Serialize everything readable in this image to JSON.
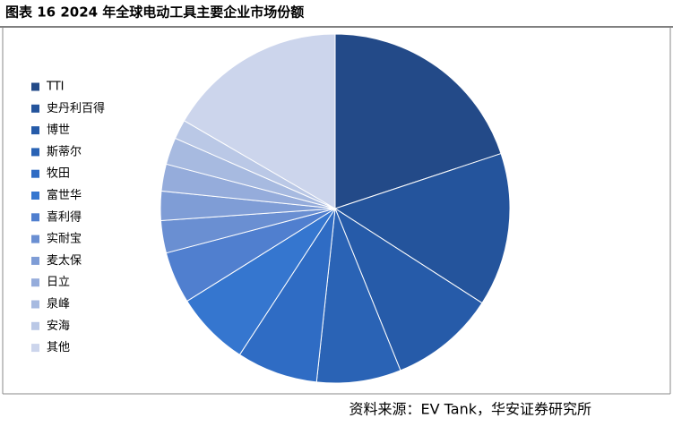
{
  "chart_data": {
    "type": "pie",
    "title": "图表 16  2024 年全球电动工具主要企业市场份额",
    "source": "资料来源：EV Tank，华安证券研究所",
    "categories": [
      "TTI",
      "史丹利百得",
      "博世",
      "斯蒂尔",
      "牧田",
      "富世华",
      "喜利得",
      "实耐宝",
      "麦太保",
      "日立",
      "泉峰",
      "安海",
      "其他"
    ],
    "values": [
      19.9,
      14.2,
      9.8,
      7.8,
      7.5,
      6.9,
      4.8,
      3.0,
      2.7,
      2.5,
      2.5,
      1.8,
      16.6
    ],
    "colors": [
      "#234a88",
      "#24549c",
      "#265ba9",
      "#2a63b5",
      "#2f6cc4",
      "#3576cf",
      "#507fcf",
      "#6a8fd2",
      "#7f9dd6",
      "#95acdb",
      "#a7bae0",
      "#bac8e6",
      "#ccd5ec"
    ],
    "legend": "left"
  }
}
